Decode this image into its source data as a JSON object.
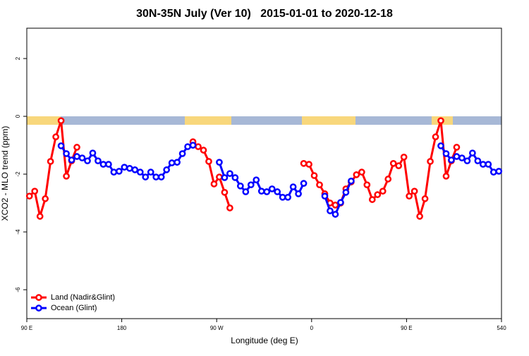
{
  "chart_data": {
    "type": "line",
    "title": "30N-35N July (Ver 10)   2015-01-01 to 2020-12-18",
    "x_label": "Longitude (deg E)",
    "y_label": "XCO2 - MLO trend (ppm)",
    "x": [
      92.5,
      97.5,
      102.5,
      107.5,
      112.5,
      117.5,
      122.5,
      127.5,
      132.5,
      137.5,
      142.5,
      147.5,
      152.5,
      157.5,
      162.5,
      167.5,
      172.5,
      177.5,
      182.5,
      187.5,
      192.5,
      197.5,
      202.5,
      207.5,
      212.5,
      217.5,
      222.5,
      227.5,
      232.5,
      237.5,
      242.5,
      247.5,
      252.5,
      257.5,
      262.5,
      267.5,
      272.5,
      277.5,
      282.5,
      287.5,
      292.5,
      297.5,
      302.5,
      307.5,
      312.5,
      317.5,
      322.5,
      327.5,
      332.5,
      337.5,
      342.5,
      347.5,
      352.5,
      357.5,
      362.5,
      367.5,
      372.5,
      377.5,
      382.5,
      387.5,
      392.5,
      397.5,
      402.5,
      407.5,
      412.5,
      417.5,
      422.5,
      427.5,
      432.5,
      437.5,
      442.5,
      447.5,
      452.5,
      457.5,
      462.5,
      467.5,
      472.5,
      477.5,
      482.5,
      487.5,
      492.5,
      497.5,
      502.5,
      507.5,
      512.5,
      517.5,
      522.5,
      527.5,
      532.5,
      537.5
    ],
    "series": [
      {
        "name": "Land (Nadir&Glint)",
        "color": "#ff0000",
        "values": [
          -2.76,
          -2.59,
          -3.46,
          -2.85,
          -1.56,
          -0.71,
          -0.15,
          -2.07,
          -1.54,
          -1.07,
          null,
          null,
          null,
          null,
          null,
          null,
          null,
          null,
          null,
          null,
          null,
          null,
          null,
          null,
          null,
          null,
          null,
          null,
          null,
          null,
          null,
          -0.88,
          -1.05,
          -1.17,
          -1.56,
          -2.34,
          -2.1,
          -2.63,
          -3.17,
          null,
          null,
          null,
          null,
          null,
          null,
          null,
          null,
          null,
          null,
          null,
          null,
          null,
          -1.63,
          -1.66,
          -2.05,
          -2.37,
          -2.68,
          -3.0,
          -3.07,
          -3.0,
          -2.51,
          -2.27,
          -2.02,
          -1.93,
          -2.37,
          -2.88,
          -2.71,
          -2.59,
          -2.17,
          -1.63,
          -1.71,
          -1.41,
          -2.76,
          -2.59,
          -3.46,
          -2.85,
          -1.56,
          -0.71,
          -0.15,
          -2.07,
          -1.54,
          -1.07,
          null,
          null,
          null,
          null,
          null,
          null,
          null,
          null
        ]
      },
      {
        "name": "Ocean (Glint)",
        "color": "#0000ff",
        "values": [
          null,
          null,
          null,
          null,
          null,
          null,
          -1.02,
          -1.29,
          -1.51,
          -1.39,
          -1.44,
          -1.54,
          -1.27,
          -1.54,
          -1.66,
          -1.66,
          -1.93,
          -1.9,
          -1.76,
          -1.8,
          -1.85,
          -1.93,
          -2.1,
          -1.93,
          -2.1,
          -2.1,
          -1.85,
          -1.61,
          -1.59,
          -1.29,
          -1.05,
          -1.0,
          null,
          null,
          null,
          null,
          -1.59,
          -2.12,
          -1.98,
          -2.12,
          -2.41,
          -2.61,
          -2.37,
          -2.2,
          -2.59,
          -2.61,
          -2.51,
          -2.61,
          -2.8,
          -2.8,
          -2.44,
          -2.68,
          -2.32,
          null,
          null,
          null,
          -2.76,
          -3.27,
          -3.39,
          -2.98,
          -2.63,
          -2.24,
          null,
          null,
          null,
          null,
          null,
          null,
          null,
          null,
          null,
          null,
          null,
          null,
          null,
          null,
          null,
          null,
          -1.02,
          -1.29,
          -1.51,
          -1.39,
          -1.44,
          -1.54,
          -1.27,
          -1.54,
          -1.66,
          -1.66,
          -1.93,
          -1.9
        ]
      }
    ],
    "xlim": [
      90,
      540
    ],
    "xticks": [
      {
        "value": 90,
        "label": "90 E"
      },
      180,
      {
        "value": 270,
        "label": "90 W"
      },
      {
        "value": 360,
        "label": "0"
      },
      {
        "value": 450,
        "label": "90 E"
      },
      540
    ],
    "ylim": [
      -7,
      3.05
    ],
    "yticks": [
      -6,
      -4,
      -2,
      0,
      2
    ],
    "grid": false,
    "legend": "bottomleft"
  }
}
